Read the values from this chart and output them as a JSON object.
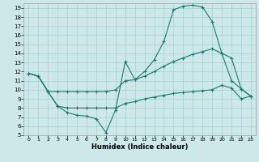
{
  "xlabel": "Humidex (Indice chaleur)",
  "bg_color": "#cde8e8",
  "line_color": "#1a7a6e",
  "grid_color": "#aacfcf",
  "xlim": [
    -0.5,
    23.5
  ],
  "ylim": [
    5,
    19.5
  ],
  "xticks": [
    0,
    1,
    2,
    3,
    4,
    5,
    6,
    7,
    8,
    9,
    10,
    11,
    12,
    13,
    14,
    15,
    16,
    17,
    18,
    19,
    20,
    21,
    22,
    23
  ],
  "yticks": [
    5,
    6,
    7,
    8,
    9,
    10,
    11,
    12,
    13,
    14,
    15,
    16,
    17,
    18,
    19
  ],
  "line1_y": [
    11.8,
    11.5,
    9.8,
    8.2,
    7.5,
    7.2,
    7.1,
    6.8,
    5.3,
    7.8,
    13.1,
    11.1,
    12.0,
    13.3,
    15.3,
    18.8,
    19.2,
    19.3,
    19.1,
    17.5,
    14.0,
    11.0,
    10.1,
    9.3
  ],
  "line2_y": [
    11.8,
    11.5,
    9.8,
    9.8,
    9.8,
    9.8,
    9.8,
    9.8,
    9.8,
    10.0,
    11.0,
    11.1,
    11.5,
    12.0,
    12.6,
    13.1,
    13.5,
    13.9,
    14.2,
    14.5,
    14.0,
    13.5,
    10.1,
    9.3
  ],
  "line3_y": [
    11.8,
    11.5,
    9.8,
    8.2,
    8.0,
    8.0,
    8.0,
    8.0,
    8.0,
    8.0,
    8.5,
    8.7,
    9.0,
    9.2,
    9.4,
    9.6,
    9.7,
    9.8,
    9.9,
    10.0,
    10.5,
    10.2,
    9.0,
    9.3
  ]
}
